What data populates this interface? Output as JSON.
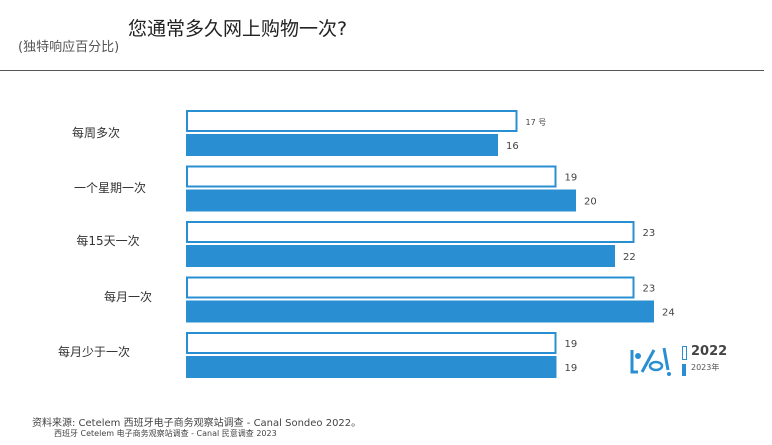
{
  "header": {
    "title": "您通常多久网上购物一次?",
    "subtitle": "(独特响应百分比)"
  },
  "legend": {
    "label_2022": "2022",
    "label_2023": "2023年"
  },
  "source": {
    "line1": "资料来源: Cetelem 西班牙电子商务观察站调查 - Canal Sondeo 2022。",
    "line2": "西班牙 Cetelem 电子商务观察站调查 - Canal 民意调查 2023"
  },
  "colors": {
    "fill_2023": "#2a8fd2",
    "outline_2022": "#2a8fd2"
  },
  "chart_data": {
    "type": "bar",
    "orientation": "horizontal",
    "categories": [
      "每周多次",
      "一个星期一次",
      "每15天一次",
      "每月一次",
      "每月少于一次"
    ],
    "series": [
      {
        "name": "2022",
        "values": [
          17,
          19,
          23,
          23,
          19
        ],
        "labels": [
          "17 号",
          "19",
          "23",
          "23",
          "19"
        ],
        "style": "outline"
      },
      {
        "name": "2023年",
        "values": [
          16,
          20,
          22,
          24,
          19
        ],
        "labels": [
          "16",
          "20",
          "22",
          "24",
          "19"
        ],
        "style": "filled"
      }
    ],
    "xlim": [
      0,
      24
    ],
    "grid": false,
    "legend_position": "bottom-right"
  }
}
